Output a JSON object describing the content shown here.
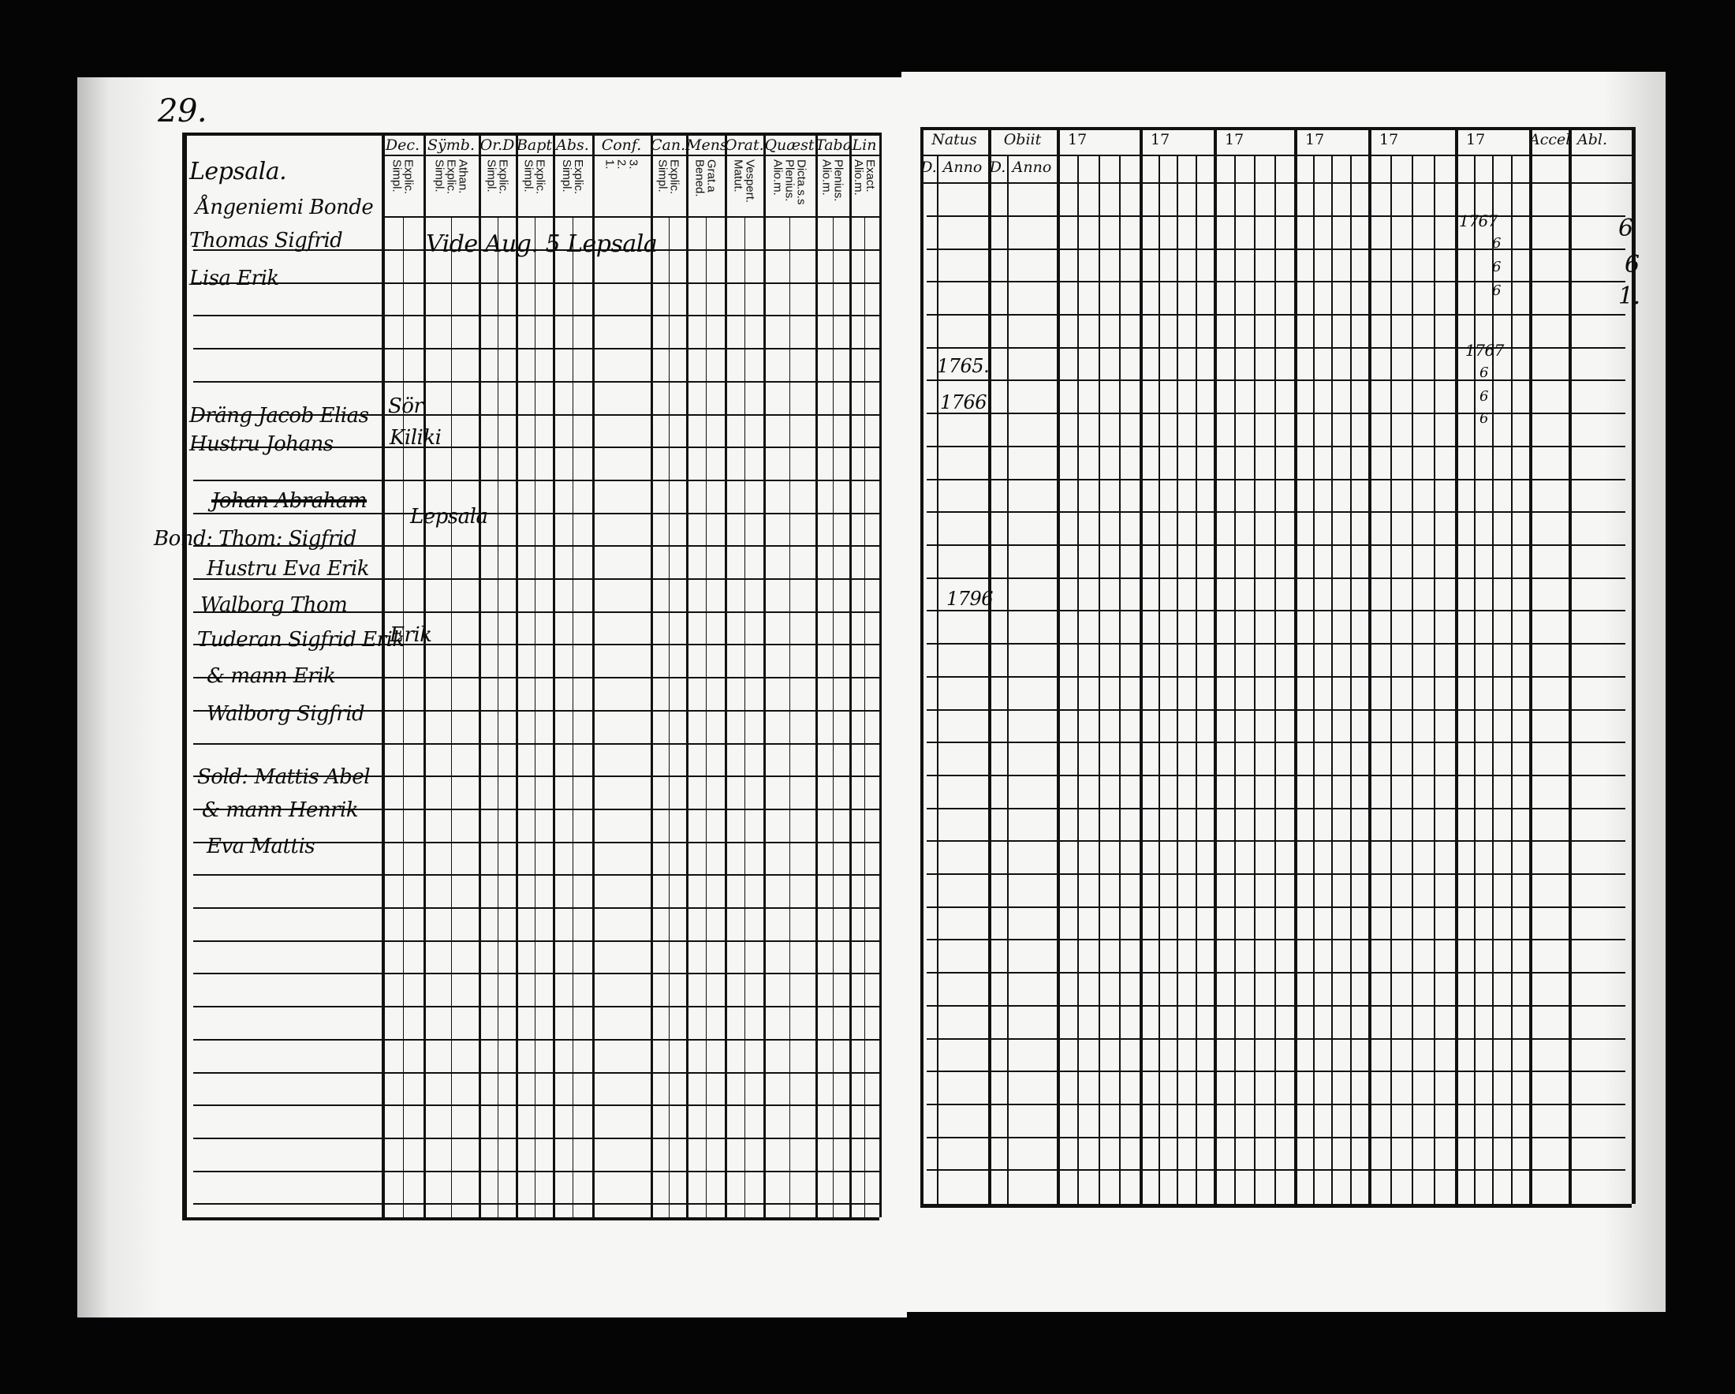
{
  "left_page": {
    "page_number": "29.",
    "column_headers": [
      {
        "label": "Dec.",
        "sub": "Explic.\nSimpl."
      },
      {
        "label": "Sÿmb.",
        "sub": "Athan.\nExplic.\nSimpl."
      },
      {
        "label": "Or.D",
        "sub": "Explic.\nSimpl."
      },
      {
        "label": "Bapt",
        "sub": "Explic.\nSimpl."
      },
      {
        "label": "Abs.",
        "sub": "Explic.\nSimpl."
      },
      {
        "label": "Conf.",
        "sub": "3.\n2.\n1."
      },
      {
        "label": "Can.D",
        "sub": "Explic.\nSimpl."
      },
      {
        "label": "Mens.",
        "sub": "Grat.a\nBened."
      },
      {
        "label": "Orat.",
        "sub": "Vespert.\nMatut."
      },
      {
        "label": "Quæst",
        "sub": "Dicta.s.s\nPlenius.\nAlio.m."
      },
      {
        "label": "Tabæ",
        "sub": "Plenius.\nAlio.m."
      },
      {
        "label": "Lin",
        "sub": "Exact.\nAlio.m."
      }
    ],
    "names": [
      "Lepsala.",
      "Ångeniemi Bonde",
      "Thomas Sigfrid",
      "Lisa Erik",
      "Dräng Jacob Elias",
      "Hustru Johans",
      "Johan Abraham",
      "Bond: Thom: Sigfrid",
      "Hustru Eva Erik",
      "Walborg Thom",
      "Tuderan Sigfrid Erik",
      "& mann Erik",
      "Walborg Sigfrid",
      "Sold: Mattis Abel",
      "& mann Henrik",
      "Eva Mattis"
    ],
    "entries": {
      "vide_note": "Vide Aug. 5 Lepsala",
      "dec_1": "Sör",
      "dec_2": "Kiliki",
      "symb_note": "Lepsala",
      "dec_3": "Erik"
    }
  },
  "right_page": {
    "column_headers": {
      "natus": "Natus",
      "obiit": "Obiit",
      "d": "D.",
      "anno": "Anno",
      "years": [
        "17",
        "17",
        "17",
        "17",
        "17",
        "17"
      ],
      "accel": "Accel",
      "abl": "Abl."
    },
    "natus_years": [
      "1765.",
      "1766.",
      "1796"
    ],
    "year_marks": [
      "1767",
      "6",
      "6",
      "6",
      "1767",
      "6",
      "6",
      "6"
    ],
    "margin_numbers": [
      "6",
      "6",
      "1."
    ]
  }
}
